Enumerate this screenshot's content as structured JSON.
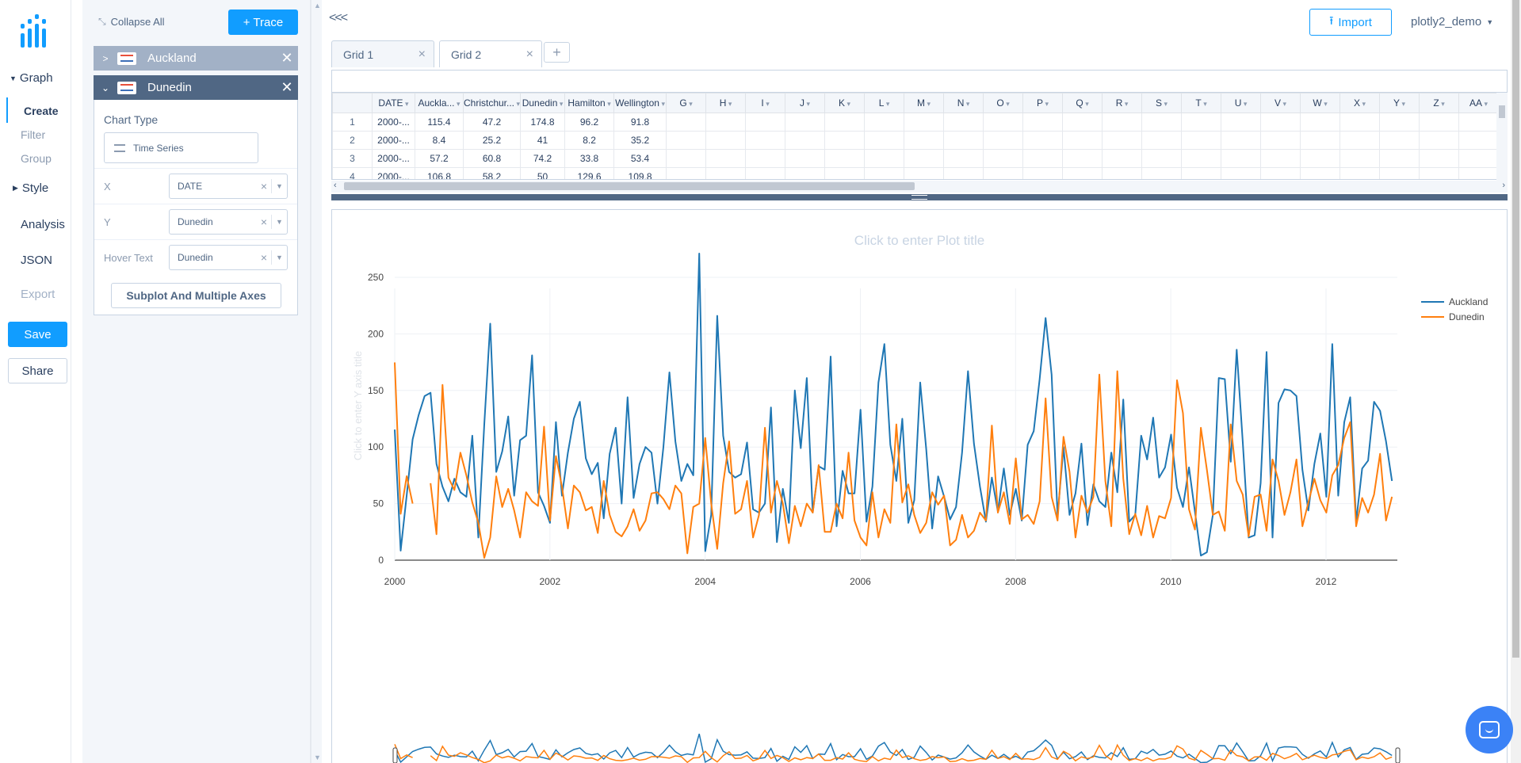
{
  "nav": {
    "graph_label": "Graph",
    "create_label": "Create",
    "filter_label": "Filter",
    "group_label": "Group",
    "style_label": "Style",
    "analysis_label": "Analysis",
    "json_label": "JSON",
    "export_label": "Export",
    "save_label": "Save",
    "share_label": "Share"
  },
  "panel": {
    "collapse_all_label": "Collapse All",
    "add_trace_label": "+ Trace",
    "traces": [
      {
        "name": "Auckland",
        "expanded": false
      },
      {
        "name": "Dunedin",
        "expanded": true
      }
    ],
    "chart_type_label": "Chart Type",
    "chart_type_value": "Time Series",
    "fields": [
      {
        "label": "X",
        "value": "DATE"
      },
      {
        "label": "Y",
        "value": "Dunedin"
      },
      {
        "label": "Hover Text",
        "value": "Dunedin"
      }
    ],
    "subplot_label": "Subplot And Multiple Axes"
  },
  "header": {
    "back_label": "<<<",
    "import_label": "Import",
    "user_label": "plotly2_demo"
  },
  "tabs": [
    {
      "label": "Grid 1",
      "selected": false
    },
    {
      "label": "Grid 2",
      "selected": true
    }
  ],
  "grid": {
    "columns": [
      "DATE",
      "Auckla...",
      "Christchur...",
      "Dunedin",
      "Hamilton",
      "Wellington",
      "G",
      "H",
      "I",
      "J",
      "K",
      "L",
      "M",
      "N",
      "O",
      "P",
      "Q",
      "R",
      "S",
      "T",
      "U",
      "V",
      "W",
      "X",
      "Y",
      "Z",
      "AA"
    ],
    "rows": [
      [
        "1",
        "2000-...",
        "115.4",
        "47.2",
        "174.8",
        "96.2",
        "91.8"
      ],
      [
        "2",
        "2000-...",
        "8.4",
        "25.2",
        "41",
        "8.2",
        "35.2"
      ],
      [
        "3",
        "2000-...",
        "57.2",
        "60.8",
        "74.2",
        "33.8",
        "53.4"
      ],
      [
        "4",
        "2000-...",
        "106.8",
        "58.2",
        "50",
        "129.6",
        "109.8"
      ]
    ]
  },
  "plot": {
    "title_placeholder": "Click to enter Plot title",
    "ytitle_placeholder": "Click to enter Y axis title"
  },
  "chart_data": {
    "type": "line",
    "title": "",
    "xlabel": "",
    "ylabel": "",
    "xlim": [
      2000,
      2012.85
    ],
    "ylim": [
      0,
      280
    ],
    "xticks": [
      "2000",
      "2002",
      "2004",
      "2006",
      "2008",
      "2010",
      "2012"
    ],
    "yticks": [
      "0",
      "50",
      "100",
      "150",
      "200",
      "250"
    ],
    "legend_position": "top-right",
    "grid": true,
    "series": [
      {
        "name": "Auckland",
        "color": "#1f77b4",
        "values": [
          115.4,
          8.4,
          57.2,
          106.8,
          128,
          145,
          148,
          85,
          65,
          52,
          72,
          60,
          56,
          110,
          20,
          120,
          209,
          78,
          96,
          127,
          57,
          106,
          110,
          181,
          60,
          48,
          33,
          122,
          57,
          95,
          125,
          140,
          90,
          76,
          86,
          37,
          94,
          117,
          50,
          144,
          55,
          85,
          100,
          95,
          50,
          100,
          166,
          105,
          70,
          85,
          75,
          271,
          8,
          40,
          216,
          110,
          78,
          73,
          76,
          104,
          45,
          42,
          50,
          135,
          16,
          63,
          33,
          150,
          99,
          161,
          42,
          83,
          80,
          180,
          30,
          79,
          59,
          59,
          133,
          34,
          65,
          157,
          191,
          102,
          70,
          125,
          33,
          53,
          157,
          98,
          28,
          74,
          56,
          36,
          47,
          95,
          167,
          103,
          65,
          34,
          73,
          43,
          81,
          40,
          63,
          35,
          102,
          114,
          160,
          214,
          164,
          39,
          100,
          40,
          59,
          103,
          31,
          67,
          52,
          47,
          95,
          60,
          142,
          34,
          40,
          110,
          89,
          126,
          73,
          82,
          111,
          64,
          47,
          82,
          43,
          4,
          7,
          40,
          161,
          160,
          87,
          186,
          105,
          20,
          22,
          68,
          184,
          20,
          139,
          151,
          150,
          145,
          80,
          44,
          85,
          112,
          56,
          191,
          57,
          122,
          144,
          34,
          81,
          88,
          140,
          132,
          105,
          70
        ]
      },
      {
        "name": "Dunedin",
        "color": "#ff7f0e",
        "values": [
          174.8,
          41,
          74.2,
          50,
          null,
          null,
          68,
          23,
          155,
          73,
          62,
          95,
          75,
          51,
          33,
          2,
          20,
          74,
          47,
          63,
          44,
          20,
          60,
          52,
          48,
          118,
          35,
          92,
          65,
          28,
          66,
          60,
          44,
          47,
          24,
          70,
          40,
          25,
          21,
          30,
          45,
          26,
          35,
          59,
          60,
          54,
          45,
          66,
          59,
          6,
          47,
          50,
          108,
          50,
          10,
          68,
          105,
          41,
          45,
          70,
          20,
          40,
          117,
          42,
          70,
          50,
          15,
          48,
          30,
          50,
          42,
          84,
          25,
          25,
          50,
          37,
          95,
          35,
          20,
          13,
          60,
          20,
          45,
          33,
          120,
          51,
          67,
          40,
          24,
          33,
          60,
          49,
          57,
          13,
          18,
          40,
          20,
          26,
          42,
          35,
          119,
          42,
          60,
          32,
          90,
          36,
          40,
          32,
          52,
          143,
          56,
          35,
          109,
          78,
          20,
          57,
          42,
          56,
          164,
          70,
          30,
          167,
          72,
          23,
          41,
          22,
          48,
          20,
          39,
          37,
          55,
          159,
          130,
          45,
          27,
          117,
          80,
          40,
          43,
          26,
          120,
          70,
          58,
          21,
          56,
          58,
          26,
          89,
          70,
          40,
          60,
          89,
          30,
          51,
          72,
          53,
          42,
          75,
          84,
          108,
          122,
          30,
          55,
          42,
          58,
          94,
          35,
          56
        ]
      }
    ]
  }
}
